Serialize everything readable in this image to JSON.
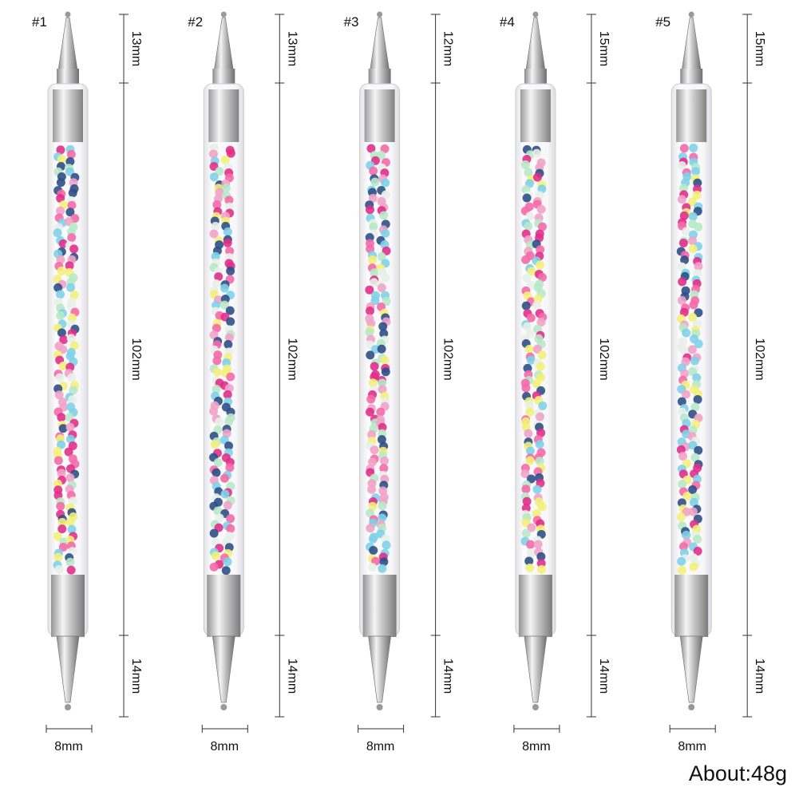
{
  "tools": [
    {
      "label": "#1",
      "top": "13mm",
      "middle": "102mm",
      "bottom": "14mm",
      "width": "8mm"
    },
    {
      "label": "#2",
      "top": "13mm",
      "middle": "102mm",
      "bottom": "14mm",
      "width": "8mm"
    },
    {
      "label": "#3",
      "top": "12mm",
      "middle": "102mm",
      "bottom": "14mm",
      "width": "8mm"
    },
    {
      "label": "#4",
      "top": "15mm",
      "middle": "102mm",
      "bottom": "14mm",
      "width": "8mm"
    },
    {
      "label": "#5",
      "top": "15mm",
      "middle": "102mm",
      "bottom": "14mm",
      "width": "8mm"
    }
  ],
  "weight": "About:48g"
}
